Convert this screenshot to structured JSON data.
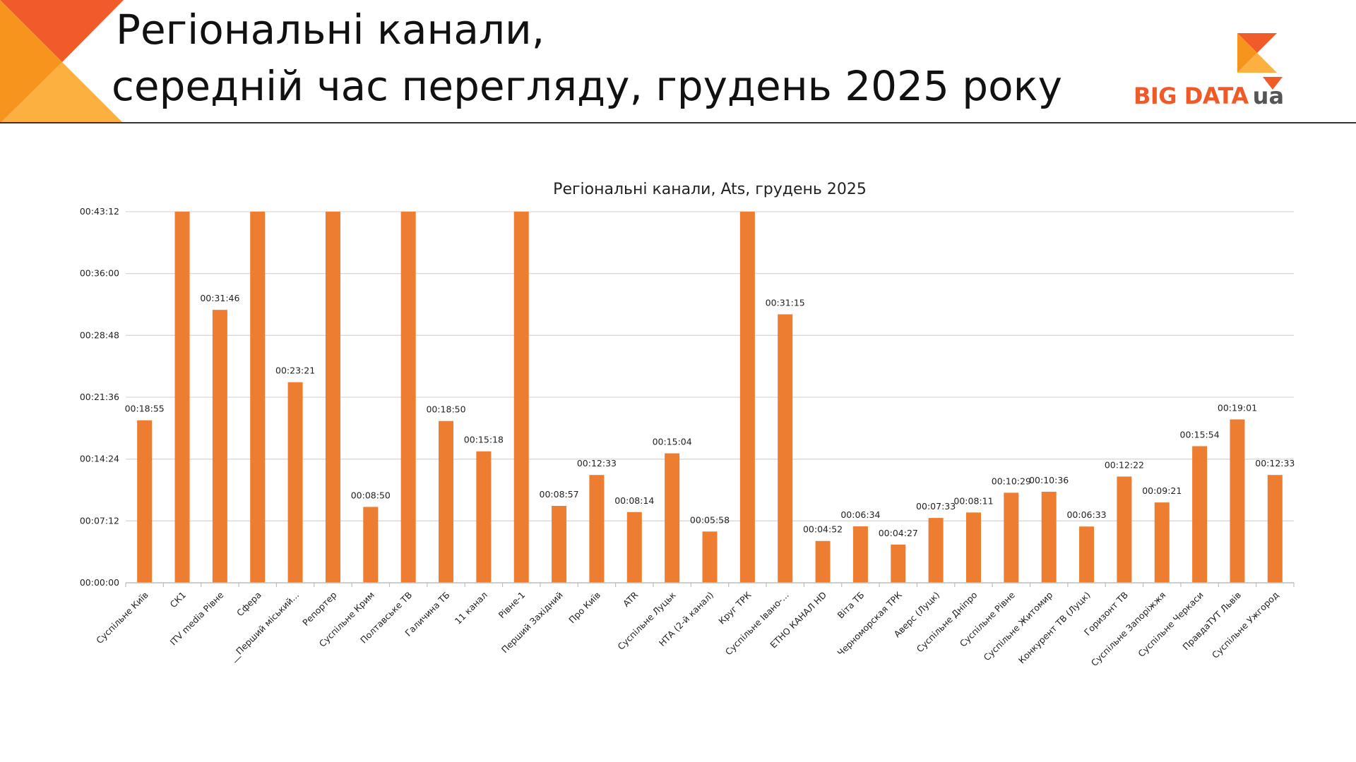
{
  "slide": {
    "title_line1": "Регіональні канали,",
    "title_line2": "середній час перегляду, грудень 2025 року",
    "logo_text": "BIG DATA",
    "logo_suffix": "ua"
  },
  "colors": {
    "bar": "#ed7d31",
    "corner_dark": "#f15a29",
    "corner_mid": "#f7941d",
    "corner_light": "#fbb040",
    "grid": "#d9d9d9"
  },
  "chart_data": {
    "type": "bar",
    "title": "Регіональні канали, Ats, грудень 2025",
    "xlabel": "",
    "ylabel": "",
    "ylim": [
      0,
      2592
    ],
    "y_unit": "seconds",
    "y_ticks": [
      0,
      432,
      864,
      1296,
      1728,
      2160,
      2592
    ],
    "y_tick_labels": [
      "00:00:00",
      "00:07:12",
      "00:14:24",
      "00:21:36",
      "00:28:48",
      "00:36:00",
      "00:43:12"
    ],
    "grid": true,
    "legend": "none",
    "categories": [
      "Суспільне Київ",
      "СК1",
      "ITV media Рівне",
      "Сфера",
      "__Перший міський...",
      "Репортер",
      "Суспільне Крим",
      "Полтавське ТВ",
      "Галичина ТБ",
      "11 канал",
      "Рівне-1",
      "Перший Західний",
      "Про Київ",
      "ATR",
      "Суспільне Луцьк",
      "НТА (2-й канал)",
      "Круг ТРК",
      "Суспільне Івано-...",
      "ЕТНО КАНАЛ HD",
      "Віта ТБ",
      "Черноморская ТРК",
      "Аверс (Луцк)",
      "Суспільне Дніпро",
      "Суспільне Рівне",
      "Суспільне Житомир",
      "Конкурент ТВ (Луцк)",
      "Горизонт ТВ",
      "Суспільне Запоріжжя",
      "Суспільне Черкаси",
      "ПравдаТУТ Львів",
      "Суспільне Ужгород"
    ],
    "values": [
      1135,
      2592,
      1906,
      2592,
      1401,
      2592,
      530,
      2592,
      1130,
      918,
      2592,
      537,
      753,
      494,
      904,
      358,
      2592,
      1875,
      292,
      394,
      267,
      453,
      491,
      629,
      636,
      393,
      742,
      561,
      954,
      1141,
      753
    ],
    "data_labels": [
      "00:18:55",
      null,
      "00:31:46",
      null,
      "00:23:21",
      null,
      "00:08:50",
      null,
      "00:18:50",
      "00:15:18",
      null,
      "00:08:57",
      "00:12:33",
      "00:08:14",
      "00:15:04",
      "00:05:58",
      null,
      "00:31:15",
      "00:04:52",
      "00:06:34",
      "00:04:27",
      "00:07:33",
      "00:08:11",
      "00:10:29",
      "00:10:36",
      "00:06:33",
      "00:12:22",
      "00:09:21",
      "00:15:54",
      "00:19:01",
      "00:12:33"
    ]
  }
}
